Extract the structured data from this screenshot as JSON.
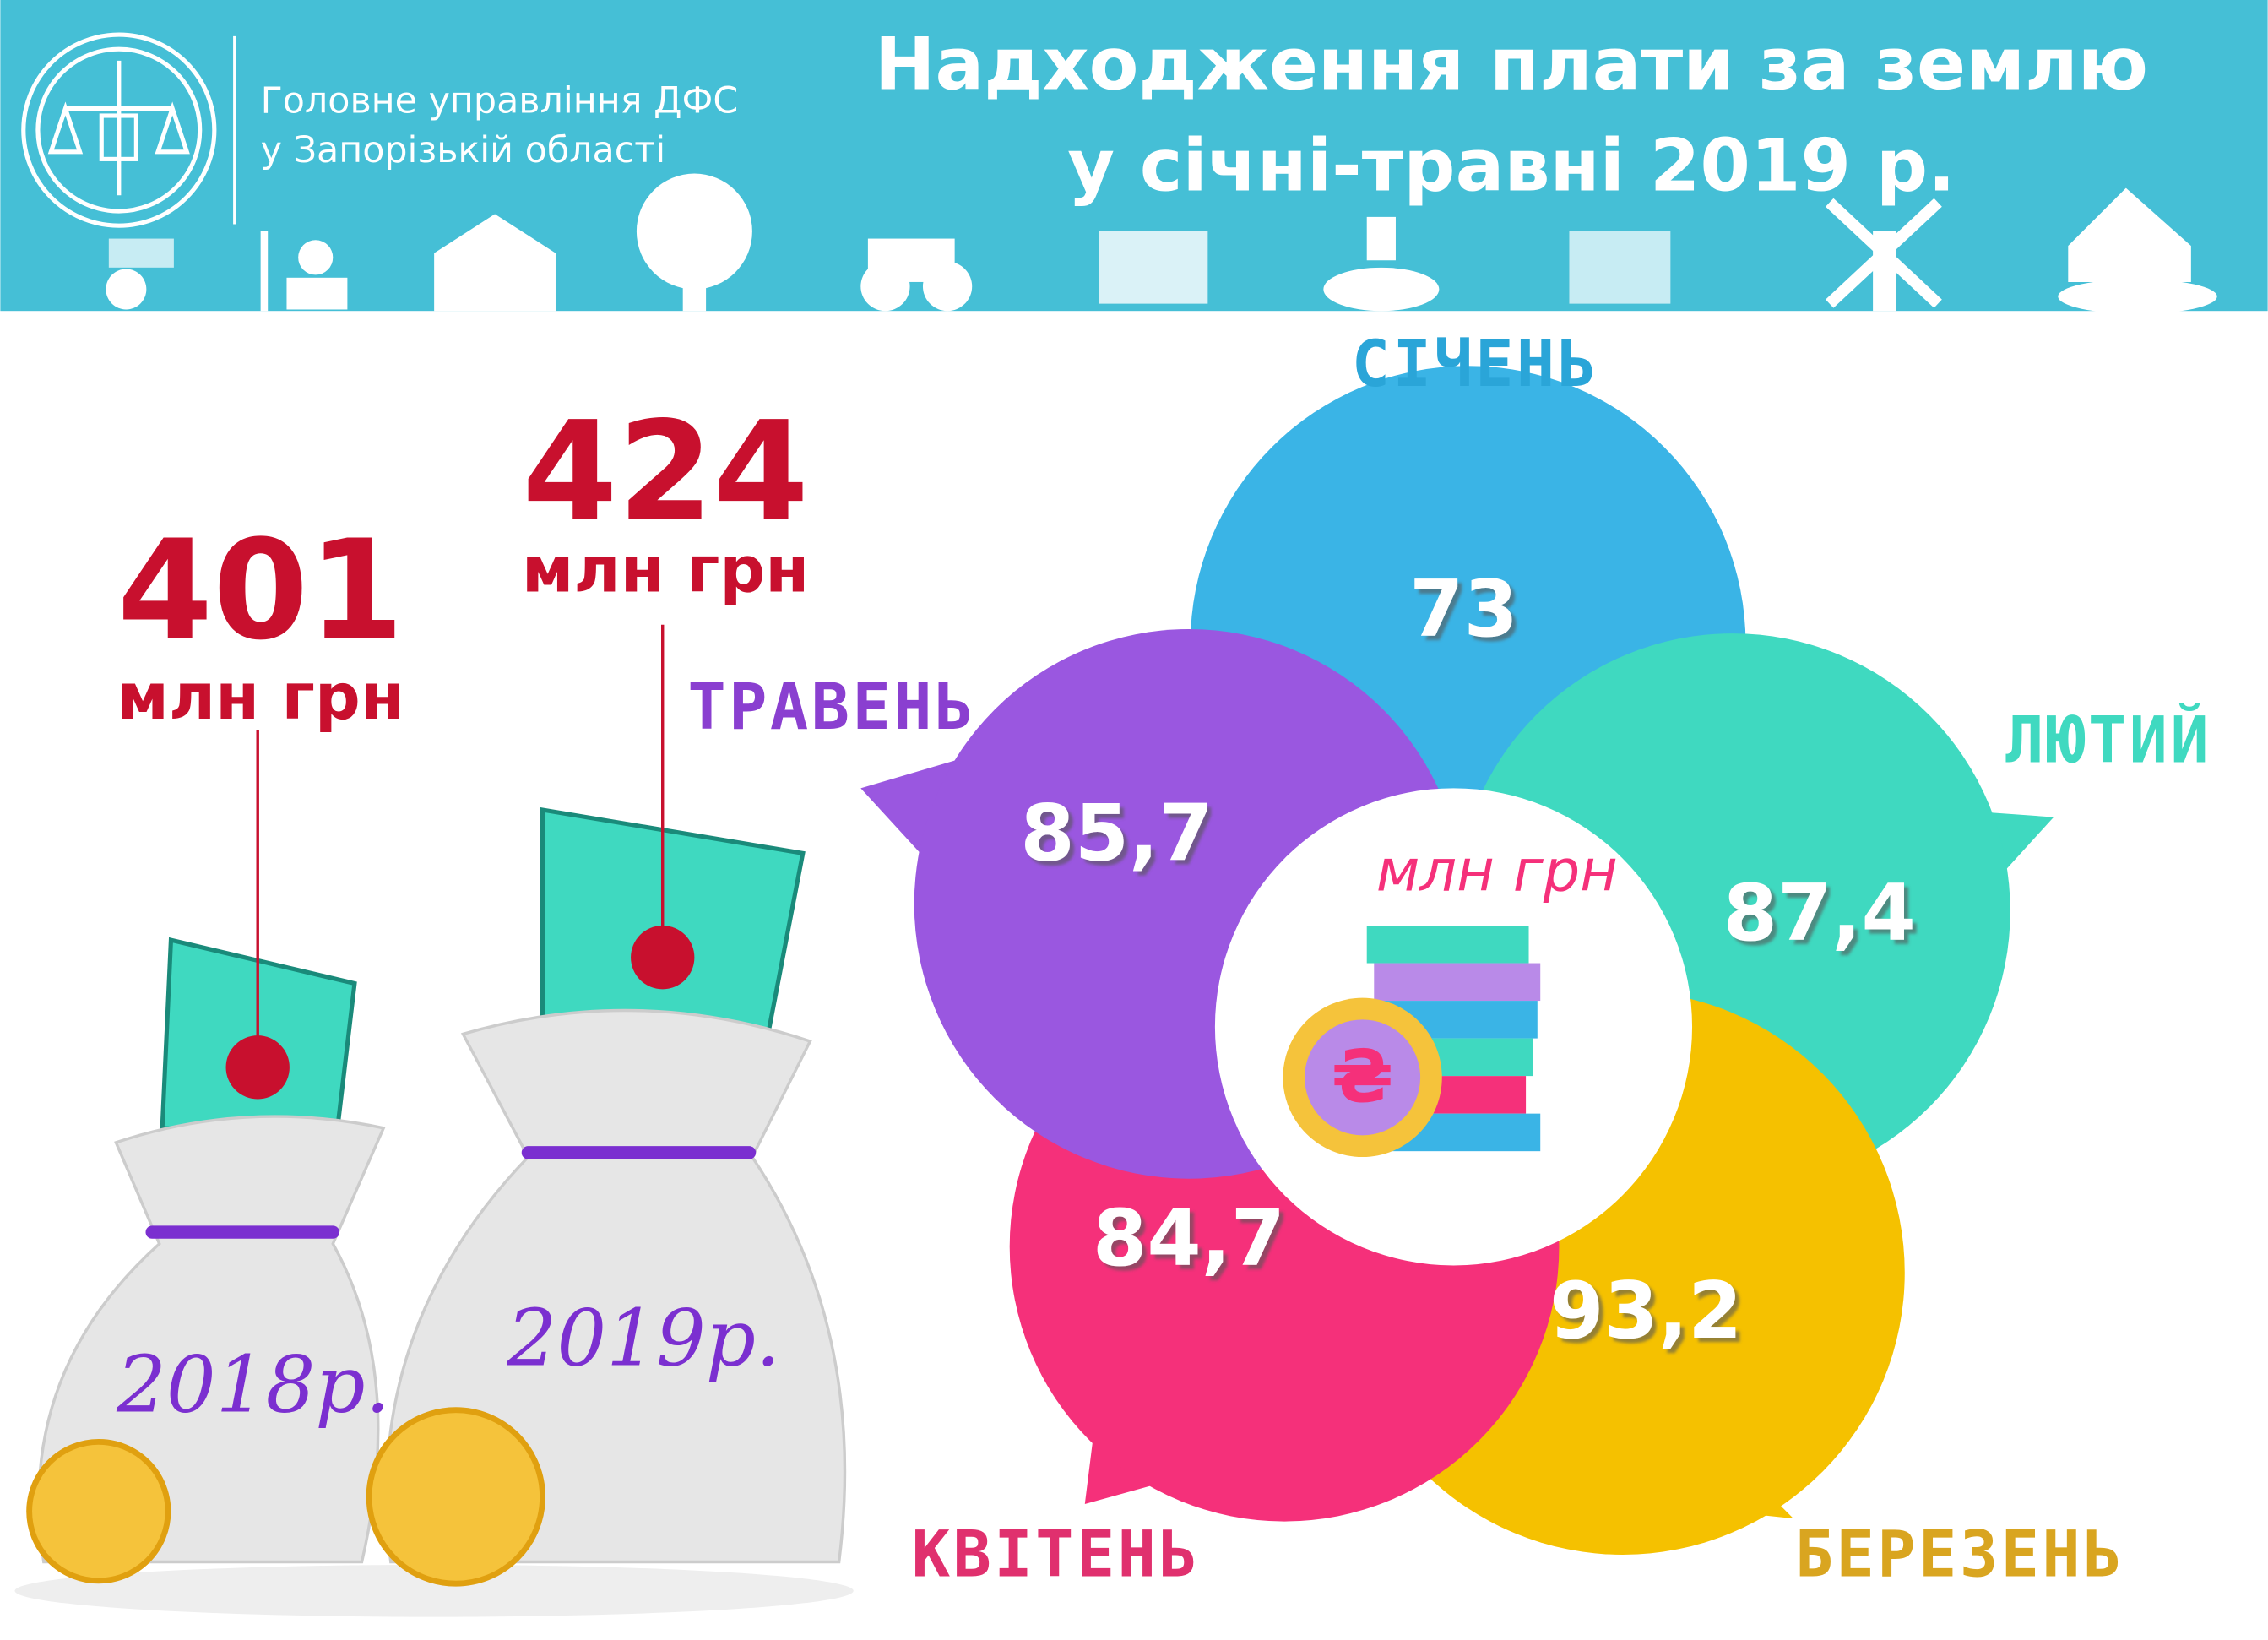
{
  "header": {
    "org_line1": "Головне управління ДФС",
    "org_line2": "у Запорізькій області",
    "title_line1": "Надходження плати за землю",
    "title_line2": "у січні-травні 2019 р."
  },
  "totals": [
    {
      "amount": "401",
      "unit": "млн грн",
      "year": "2018р."
    },
    {
      "amount": "424",
      "unit": "млн грн",
      "year": "2019р."
    }
  ],
  "months": [
    {
      "name": "СІЧЕНЬ",
      "value": "73"
    },
    {
      "name": "ЛЮТИЙ",
      "value": "87,4"
    },
    {
      "name": "БЕРЕЗЕНЬ",
      "value": "93,2"
    },
    {
      "name": "КВІТЕНЬ",
      "value": "84,7"
    },
    {
      "name": "ТРАВЕНЬ",
      "value": "85,7"
    }
  ],
  "center_unit": "млн грн"
}
